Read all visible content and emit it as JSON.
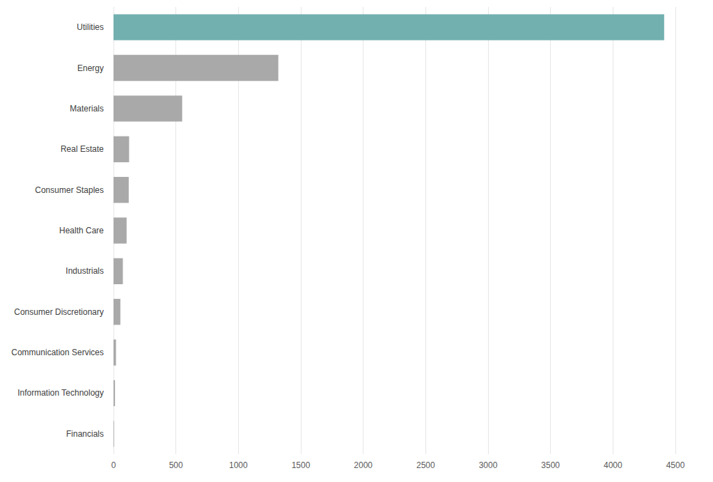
{
  "chart_data": {
    "type": "bar",
    "orientation": "horizontal",
    "categories": [
      "Utilities",
      "Energy",
      "Materials",
      "Real Estate",
      "Consumer Staples",
      "Health Care",
      "Industrials",
      "Consumer Discretionary",
      "Communication Services",
      "Information Technology",
      "Financials"
    ],
    "values": [
      4410,
      1320,
      550,
      125,
      122,
      105,
      75,
      55,
      20,
      12,
      5
    ],
    "colors": [
      "#72b0b0",
      "#a9a9a9",
      "#a9a9a9",
      "#a9a9a9",
      "#a9a9a9",
      "#a9a9a9",
      "#a9a9a9",
      "#a9a9a9",
      "#a9a9a9",
      "#a9a9a9",
      "#a9a9a9"
    ],
    "xlim": [
      0,
      4500
    ],
    "xticks": [
      0,
      500,
      1000,
      1500,
      2000,
      2500,
      3000,
      3500,
      4000,
      4500
    ],
    "grid": true,
    "data_labels": false
  }
}
